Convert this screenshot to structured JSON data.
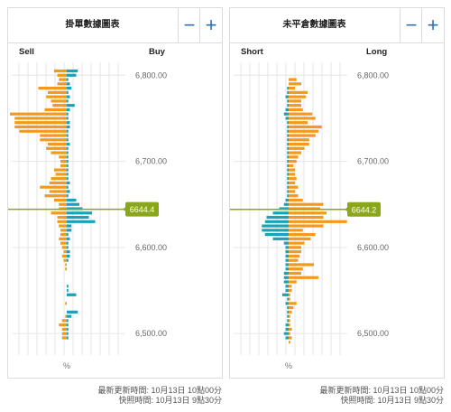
{
  "panels": [
    {
      "title": "掛單數據圖表",
      "zoom_out_label": "−",
      "zoom_in_label": "+",
      "left_label": "Sell",
      "right_label": "Buy",
      "unit_label": "%",
      "price_marker": "6644.4",
      "y_ticks": [
        "6,800.00",
        "6,700.00",
        "6,600.00",
        "6,500.00"
      ]
    },
    {
      "title": "未平倉數據圖表",
      "zoom_out_label": "−",
      "zoom_in_label": "+",
      "left_label": "Short",
      "right_label": "Long",
      "unit_label": "%",
      "price_marker": "6644.2",
      "y_ticks": [
        "6,800.00",
        "6,700.00",
        "6,600.00",
        "6,500.00"
      ]
    }
  ],
  "footer": {
    "left_line1": "最新更新時間: 10月13日 10點00分",
    "left_line2": "快照時間: 10月13日 9點30分",
    "right_line1": "最新更新時間: 10月13日 10點00分",
    "right_line2": "快照時間: 10月13日 9點30分"
  },
  "colors": {
    "orange": "#f39a1e",
    "teal": "#1aa3b8",
    "marker": "#8aa61a",
    "grid": "#e6e6e6"
  },
  "chart_data": [
    {
      "type": "bar",
      "orientation": "horizontal-diverging",
      "ylim": [
        6475,
        6815
      ],
      "levels": [
        6805,
        6800,
        6795,
        6790,
        6785,
        6780,
        6775,
        6770,
        6765,
        6760,
        6755,
        6750,
        6745,
        6740,
        6735,
        6730,
        6725,
        6720,
        6715,
        6710,
        6705,
        6700,
        6695,
        6690,
        6685,
        6680,
        6675,
        6670,
        6665,
        6660,
        6655,
        6650,
        6645,
        6640,
        6635,
        6630,
        6625,
        6620,
        6615,
        6610,
        6605,
        6600,
        6595,
        6590,
        6585,
        6580,
        6575,
        6570,
        6565,
        6560,
        6555,
        6550,
        6545,
        6540,
        6535,
        6530,
        6525,
        6520,
        6515,
        6510,
        6505,
        6500,
        6495,
        6490
      ],
      "series": [
        {
          "name": "Sell",
          "values": [
            0.8,
            0.6,
            0.5,
            0.6,
            1.8,
            1.2,
            1.3,
            1.0,
            0.9,
            1.4,
            3.6,
            3.3,
            3.3,
            3.3,
            3.0,
            1.7,
            1.7,
            1.2,
            1.3,
            1.0,
            0.5,
            0.4,
            0.4,
            0.8,
            0.7,
            1.0,
            1.1,
            1.7,
            1.1,
            1.4,
            0.8,
            0.5,
            0.5,
            1.0,
            0.6,
            0.6,
            0.5,
            0.4,
            0.4,
            0.5,
            0.4,
            0.3,
            0.2,
            0.3,
            0.2,
            0.1,
            0.1,
            0,
            0,
            0,
            0,
            0,
            0,
            0,
            0.1,
            0,
            0,
            0.1,
            0.3,
            0.5,
            0.3,
            0.3,
            0.3,
            0
          ]
        },
        {
          "name": "Buy",
          "values": [
            0.7,
            0.6,
            0.1,
            0.2,
            0.3,
            0.1,
            0.2,
            0.1,
            0.5,
            0.2,
            0.1,
            0.1,
            0.2,
            0.2,
            0.1,
            0.1,
            0.1,
            0.2,
            0.1,
            0.1,
            0.1,
            0.1,
            0.1,
            0.1,
            0.1,
            0.1,
            0.2,
            0.1,
            0.2,
            0.1,
            0.6,
            0.8,
            1.0,
            1.6,
            1.4,
            1.8,
            0.3,
            0.3,
            0.1,
            0.2,
            0.1,
            0.1,
            0.2,
            0.2,
            0.1,
            0,
            0,
            0,
            0,
            0,
            0.1,
            0.1,
            0.6,
            0,
            0,
            0,
            0.7,
            0.3,
            0.1,
            0.1,
            0.1,
            0.1,
            0.1,
            0
          ]
        }
      ]
    },
    {
      "type": "bar",
      "orientation": "horizontal-diverging",
      "ylim": [
        6475,
        6815
      ],
      "levels": [
        6805,
        6800,
        6795,
        6790,
        6785,
        6780,
        6775,
        6770,
        6765,
        6760,
        6755,
        6750,
        6745,
        6740,
        6735,
        6730,
        6725,
        6720,
        6715,
        6710,
        6705,
        6700,
        6695,
        6690,
        6685,
        6680,
        6675,
        6670,
        6665,
        6660,
        6655,
        6650,
        6645,
        6640,
        6635,
        6630,
        6625,
        6620,
        6615,
        6610,
        6605,
        6600,
        6595,
        6590,
        6585,
        6580,
        6575,
        6570,
        6565,
        6560,
        6555,
        6550,
        6545,
        6540,
        6535,
        6530,
        6525,
        6520,
        6515,
        6510,
        6505,
        6500,
        6495,
        6490
      ],
      "series": [
        {
          "name": "Short",
          "values": [
            0,
            0,
            0,
            0,
            0.1,
            0.1,
            0.2,
            0.1,
            0.1,
            0.2,
            0.3,
            0.2,
            0.1,
            0.1,
            0.1,
            0.1,
            0.1,
            0.1,
            0.1,
            0.1,
            0.1,
            0.1,
            0.1,
            0.1,
            0.1,
            0.1,
            0.1,
            0.1,
            0.1,
            0.1,
            0.2,
            0.3,
            0.6,
            1.0,
            1.4,
            1.5,
            1.7,
            1.7,
            1.5,
            1.0,
            0.3,
            0.2,
            0.2,
            0.2,
            0.2,
            0.2,
            0.2,
            0.3,
            0.3,
            0.3,
            0.2,
            0.2,
            0.4,
            0.1,
            0.2,
            0.1,
            0.1,
            0.1,
            0.1,
            0.2,
            0.2,
            0.3,
            0.2,
            0
          ]
        },
        {
          "name": "Long",
          "values": [
            0,
            0,
            0.5,
            0.8,
            0.4,
            1.2,
            1.1,
            0.8,
            0.8,
            0.9,
            1.5,
            1.7,
            1.2,
            2.1,
            1.9,
            1.7,
            1.3,
            1.3,
            1.0,
            0.8,
            0.6,
            0.5,
            0.3,
            0.4,
            0.4,
            0.5,
            0.4,
            0.6,
            0.4,
            0.6,
            0.9,
            2.2,
            2.0,
            2.4,
            2.2,
            3.7,
            2.2,
            0.9,
            1.7,
            1.4,
            1.0,
            0.8,
            0.8,
            0.7,
            0.6,
            1.6,
            0.9,
            0.8,
            1.9,
            0.5,
            0.2,
            0.2,
            0.1,
            0.1,
            0.5,
            0.3,
            0.2,
            0.1,
            0.1,
            0.1,
            0.2,
            0.1,
            0.2,
            0.1
          ]
        }
      ]
    }
  ]
}
